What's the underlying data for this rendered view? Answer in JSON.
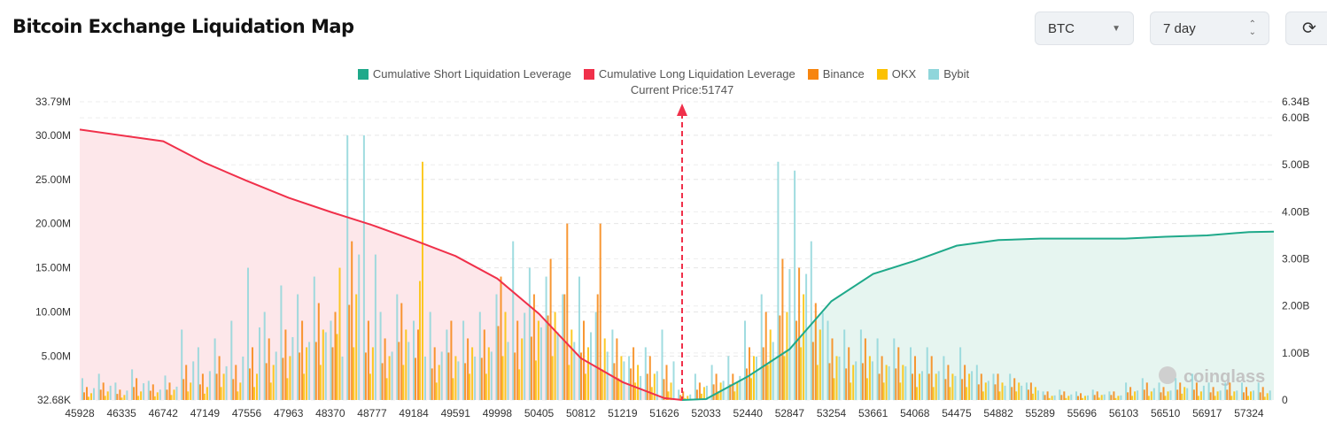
{
  "header": {
    "title": "Bitcoin Exchange Liquidation Map",
    "coin": "BTC",
    "range": "7 day"
  },
  "colors": {
    "short": "#1fa98a",
    "long": "#f0304a",
    "binance": "#f7850f",
    "okx": "#fcc100",
    "bybit": "#8fd6db"
  },
  "chart_data": {
    "type": "bar",
    "legend": [
      "Cumulative Short Liquidation Leverage",
      "Cumulative Long Liquidation Leverage",
      "Binance",
      "OKX",
      "Bybit"
    ],
    "annotation": "Current Price:51747",
    "current_price": 51747,
    "watermark": "coinglass",
    "x_ticks": [
      "45928",
      "46335",
      "46742",
      "47149",
      "47556",
      "47963",
      "48370",
      "48777",
      "49184",
      "49591",
      "49998",
      "50405",
      "50812",
      "51219",
      "51626",
      "52033",
      "52440",
      "52847",
      "53254",
      "53661",
      "54068",
      "54475",
      "54882",
      "55289",
      "55696",
      "56103",
      "56510",
      "56917",
      "57324"
    ],
    "xlim": [
      45928,
      57550
    ],
    "y_left_ticks": [
      "33.79M",
      "30.00M",
      "25.00M",
      "20.00M",
      "15.00M",
      "10.00M",
      "5.00M",
      "32.68K"
    ],
    "y_left_values": [
      33.79,
      30,
      25,
      20,
      15,
      10,
      5,
      0.03268
    ],
    "ylim_left_M": [
      0.03268,
      33.79
    ],
    "y_right_ticks": [
      "6.34B",
      "6.00B",
      "5.00B",
      "4.00B",
      "3.00B",
      "2.00B",
      "1.00B",
      "0"
    ],
    "y_right_values": [
      6.34,
      6,
      5,
      4,
      3,
      2,
      1,
      0
    ],
    "ylim_right_B": [
      0,
      6.34
    ],
    "bin_start": 45928,
    "bin_width": 161.4,
    "bars_M_binance_okx_bybit": [
      [
        1.5,
        0.8,
        2.5
      ],
      [
        2,
        1,
        3
      ],
      [
        1.2,
        0.6,
        2
      ],
      [
        2.5,
        1,
        3.5
      ],
      [
        1.8,
        0.9,
        2.2
      ],
      [
        2,
        1.2,
        2.8
      ],
      [
        4,
        2,
        8
      ],
      [
        3,
        1.5,
        6
      ],
      [
        5,
        3,
        7
      ],
      [
        4,
        2,
        9
      ],
      [
        6,
        3,
        15
      ],
      [
        7,
        4,
        10
      ],
      [
        8,
        5,
        13
      ],
      [
        9,
        6,
        12
      ],
      [
        11,
        8,
        14
      ],
      [
        10,
        15,
        9
      ],
      [
        18,
        12,
        30
      ],
      [
        9,
        6,
        30
      ],
      [
        7,
        5,
        10
      ],
      [
        11,
        8,
        12
      ],
      [
        8,
        27,
        9
      ],
      [
        6,
        4,
        10
      ],
      [
        9,
        5,
        8
      ],
      [
        7,
        6,
        9
      ],
      [
        8,
        6,
        10
      ],
      [
        14,
        10,
        12
      ],
      [
        9,
        7,
        18
      ],
      [
        12,
        9,
        15
      ],
      [
        16,
        10,
        14
      ],
      [
        20,
        8,
        12
      ],
      [
        9,
        6,
        14
      ],
      [
        20,
        7,
        10
      ],
      [
        7,
        5,
        8
      ],
      [
        6,
        4,
        5
      ],
      [
        5,
        3,
        6
      ],
      [
        4,
        2,
        8
      ],
      [
        1,
        0.5,
        1.2
      ],
      [
        2,
        1.5,
        3
      ],
      [
        3,
        2,
        4
      ],
      [
        3,
        2,
        5
      ],
      [
        6,
        5,
        9
      ],
      [
        10,
        8,
        12
      ],
      [
        16,
        10,
        27
      ],
      [
        15,
        12,
        26
      ],
      [
        11,
        8,
        18
      ],
      [
        7,
        5,
        9
      ],
      [
        6,
        4,
        8
      ],
      [
        7,
        5,
        8
      ],
      [
        5,
        4,
        7
      ],
      [
        6,
        4,
        7
      ],
      [
        5,
        3,
        6
      ],
      [
        5,
        3,
        6
      ],
      [
        4,
        3,
        5
      ],
      [
        4,
        3,
        6
      ],
      [
        3,
        2,
        4
      ],
      [
        3,
        2,
        3
      ],
      [
        2.5,
        2,
        3
      ],
      [
        2,
        1.5,
        2
      ],
      [
        1,
        0.5,
        1
      ],
      [
        1,
        0.5,
        1.2
      ],
      [
        0.8,
        0.5,
        1
      ],
      [
        1,
        0.6,
        1.2
      ],
      [
        1,
        0.5,
        1
      ],
      [
        1.5,
        1,
        2
      ],
      [
        2,
        1,
        2.5
      ],
      [
        1.5,
        1,
        2
      ],
      [
        2,
        1.5,
        2.5
      ],
      [
        2,
        1,
        3
      ],
      [
        1.5,
        1,
        2
      ],
      [
        2,
        1,
        2
      ],
      [
        1.5,
        1,
        2
      ],
      [
        1.5,
        0.8,
        2
      ]
    ],
    "cumulative_long_B": [
      [
        45928,
        5.75
      ],
      [
        46742,
        5.5
      ],
      [
        47149,
        5.04
      ],
      [
        47556,
        4.66
      ],
      [
        47963,
        4.3
      ],
      [
        48370,
        4.0
      ],
      [
        48777,
        3.72
      ],
      [
        49184,
        3.4
      ],
      [
        49591,
        3.06
      ],
      [
        49998,
        2.58
      ],
      [
        50405,
        1.83
      ],
      [
        50812,
        0.89
      ],
      [
        51219,
        0.38
      ],
      [
        51626,
        0.04
      ],
      [
        51747,
        0
      ]
    ],
    "cumulative_short_B": [
      [
        51747,
        0
      ],
      [
        52033,
        0.02
      ],
      [
        52440,
        0.5
      ],
      [
        52847,
        1.08
      ],
      [
        53254,
        2.1
      ],
      [
        53661,
        2.68
      ],
      [
        54068,
        2.96
      ],
      [
        54475,
        3.28
      ],
      [
        54882,
        3.4
      ],
      [
        55289,
        3.43
      ],
      [
        56103,
        3.43
      ],
      [
        56510,
        3.47
      ],
      [
        56917,
        3.5
      ],
      [
        57324,
        3.57
      ],
      [
        57550,
        3.58
      ]
    ]
  }
}
